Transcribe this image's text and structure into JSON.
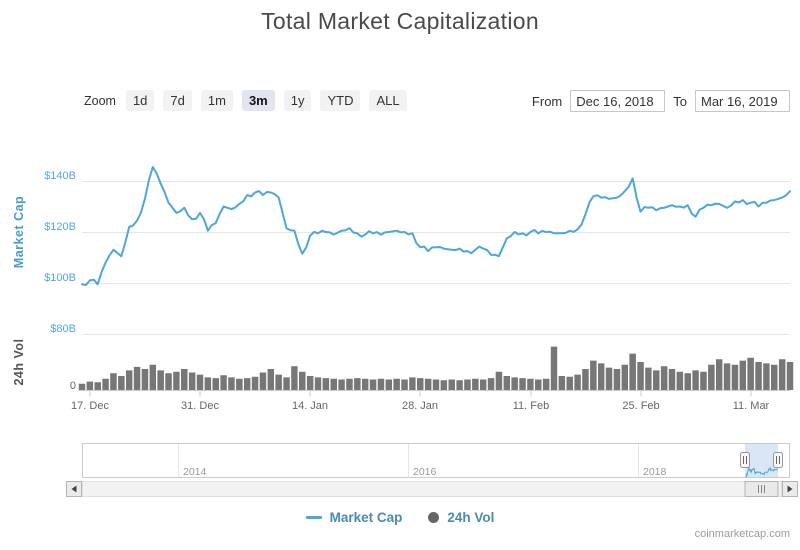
{
  "title": "Total Market Capitalization",
  "range_selector": {
    "zoom_label": "Zoom",
    "buttons": [
      "1d",
      "7d",
      "1m",
      "3m",
      "1y",
      "YTD",
      "ALL"
    ],
    "selected": "3m",
    "from_label": "From",
    "from_value": "Dec 16, 2018",
    "to_label": "To",
    "to_value": "Mar 16, 2019"
  },
  "legend": [
    {
      "label": "Market Cap",
      "symbol": "line",
      "color": "#4FA6D8"
    },
    {
      "label": "24h Vol",
      "symbol": "circle",
      "color": "#666666"
    }
  ],
  "navigator": {
    "year_labels": [
      "2014",
      "2016",
      "2018"
    ],
    "selection_range": "Dec 16, 2018 - Mar 16, 2019"
  },
  "credits": "coinmarketcap.com",
  "colors": {
    "line": "#4FA6D8",
    "volume_bar": "#777777",
    "axis_label_blue": "#55A5DB",
    "selected_button_bg": "#E2E5F0",
    "navigator_mask": "#AAC8E8"
  },
  "chart_data": [
    {
      "type": "line",
      "title": "Total Market Capitalization",
      "ylabel": "Market Cap",
      "unit": "USD billions",
      "ylim": [
        95,
        155
      ],
      "yticks": [
        "$100B",
        "$120B",
        "$140B"
      ],
      "xticks": [
        "17. Dec",
        "31. Dec",
        "14. Jan",
        "28. Jan",
        "11. Feb",
        "25. Feb",
        "11. Mar"
      ],
      "x_start": "2018-12-16",
      "x_end": "2019-03-16",
      "x_interval_days": 1,
      "grid": true,
      "series": [
        {
          "name": "Market Cap",
          "values": [
            99.5,
            101,
            99.5,
            108,
            113,
            110.5,
            122,
            124.5,
            133,
            145.5,
            139,
            131.5,
            127.5,
            129.5,
            125,
            127.5,
            120.5,
            123.5,
            130,
            129,
            131,
            134.5,
            135.5,
            134.5,
            135.5,
            133.5,
            121.5,
            120.5,
            111.5,
            118.5,
            119.5,
            120,
            119,
            120.5,
            121.5,
            119.5,
            119,
            119.5,
            119,
            120,
            120.5,
            120,
            119.5,
            114,
            112.5,
            114,
            113.5,
            113,
            113.5,
            112.5,
            113,
            113.5,
            111,
            110.5,
            117.5,
            120,
            119.5,
            120,
            119.5,
            120,
            119.5,
            119.5,
            120.5,
            121,
            127,
            134,
            133.5,
            133,
            133.5,
            136,
            141,
            128,
            129.5,
            128.5,
            129.5,
            130.5,
            130,
            130.5,
            126,
            129.5,
            130.5,
            131,
            129.5,
            132,
            132.5,
            131.5,
            130,
            131.5,
            132.5,
            133.5,
            136
          ]
        }
      ]
    },
    {
      "type": "bar",
      "ylabel": "24h Vol",
      "unit": "USD billions",
      "ylim": [
        0,
        80
      ],
      "yticks": [
        "0",
        "$80B"
      ],
      "x_start": "2018-12-16",
      "x_end": "2019-03-16",
      "x_interval_days": 1,
      "grid": false,
      "series": [
        {
          "name": "24h Vol",
          "values": [
            9,
            12,
            11,
            16,
            24,
            20,
            28,
            33,
            30,
            36,
            28,
            24,
            26,
            30,
            25,
            22,
            18,
            17,
            21,
            18,
            16,
            17,
            19,
            25,
            30,
            22,
            18,
            34,
            26,
            20,
            18,
            17,
            16,
            15,
            16,
            17,
            16,
            15,
            16,
            15,
            16,
            15,
            18,
            17,
            16,
            15,
            14,
            15,
            14,
            15,
            16,
            15,
            17,
            26,
            20,
            18,
            17,
            16,
            15,
            16,
            62,
            20,
            19,
            22,
            30,
            42,
            38,
            32,
            30,
            36,
            52,
            40,
            32,
            28,
            34,
            30,
            26,
            24,
            28,
            26,
            36,
            44,
            38,
            36,
            42,
            46,
            40,
            38,
            36,
            44,
            40
          ]
        }
      ]
    }
  ]
}
